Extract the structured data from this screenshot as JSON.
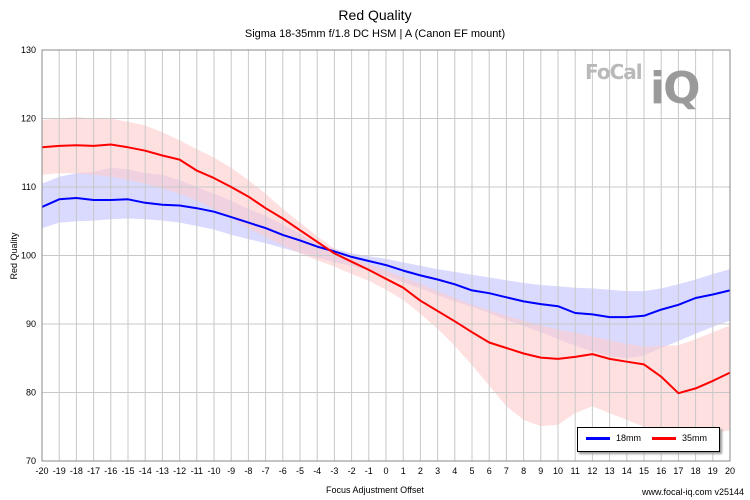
{
  "chart_data": {
    "type": "line",
    "title": "Red Quality",
    "subtitle": "Sigma 18-35mm f/1.8 DC HSM | A (Canon EF mount)",
    "xlabel": "Focus Adjustment Offset",
    "ylabel": "Red Quality",
    "xlim": [
      -20,
      20
    ],
    "ylim": [
      70,
      130
    ],
    "yticks": [
      70,
      80,
      90,
      100,
      110,
      120,
      130
    ],
    "x": [
      -20,
      -19,
      -18,
      -17,
      -16,
      -15,
      -14,
      -13,
      -12,
      -11,
      -10,
      -9,
      -8,
      -7,
      -6,
      -5,
      -4,
      -3,
      -2,
      -1,
      0,
      1,
      2,
      3,
      4,
      5,
      6,
      7,
      8,
      9,
      10,
      11,
      12,
      13,
      14,
      15,
      16,
      17,
      18,
      19,
      20
    ],
    "grid": true,
    "legend_position": "bottom-right",
    "series": [
      {
        "name": "18mm",
        "color": "#0000ff",
        "band_color": "#bcbcff",
        "values": [
          107.1,
          108.2,
          108.4,
          108.1,
          108.1,
          108.2,
          107.7,
          107.4,
          107.3,
          106.9,
          106.4,
          105.6,
          104.8,
          104.0,
          103.0,
          102.2,
          101.3,
          100.6,
          99.8,
          99.2,
          98.6,
          97.8,
          97.1,
          96.5,
          95.8,
          94.9,
          94.5,
          93.9,
          93.3,
          92.9,
          92.6,
          91.6,
          91.4,
          91.0,
          91.0,
          91.2,
          92.1,
          92.8,
          93.8,
          94.3,
          94.9
        ],
        "upper": [
          110.5,
          111.5,
          112.0,
          112.2,
          112.8,
          112.6,
          112.0,
          111.8,
          111.0,
          110.0,
          109.0,
          108.0,
          106.8,
          105.8,
          104.5,
          103.2,
          101.8,
          101.0,
          100.3,
          99.9,
          99.5,
          99.0,
          98.5,
          98.0,
          97.6,
          97.2,
          96.8,
          96.4,
          96.0,
          95.7,
          95.5,
          95.3,
          95.2,
          95.0,
          94.8,
          94.8,
          95.2,
          95.8,
          96.5,
          97.3,
          98.0
        ],
        "lower": [
          104.0,
          104.8,
          105.0,
          105.1,
          105.3,
          105.4,
          105.3,
          105.1,
          104.8,
          104.3,
          103.8,
          103.0,
          102.4,
          101.8,
          101.1,
          100.4,
          99.7,
          99.0,
          98.5,
          97.8,
          97.0,
          96.1,
          95.2,
          94.2,
          93.3,
          92.5,
          91.6,
          90.6,
          89.7,
          88.8,
          87.8,
          86.8,
          86.0,
          85.3,
          85.0,
          85.4,
          86.5,
          87.5,
          88.6,
          89.6,
          90.5
        ]
      },
      {
        "name": "35mm",
        "color": "#ff0000",
        "band_color": "#ffcccc",
        "values": [
          115.8,
          116.0,
          116.1,
          116.0,
          116.2,
          115.8,
          115.3,
          114.6,
          114.0,
          112.4,
          111.3,
          110.0,
          108.6,
          106.9,
          105.4,
          103.7,
          102.0,
          100.3,
          99.1,
          97.9,
          96.6,
          95.3,
          93.4,
          91.9,
          90.4,
          88.8,
          87.3,
          86.5,
          85.7,
          85.1,
          84.9,
          85.2,
          85.6,
          84.9,
          84.5,
          84.1,
          82.3,
          79.9,
          80.6,
          81.7,
          82.9
        ],
        "upper": [
          119.8,
          120.0,
          120.2,
          120.0,
          120.0,
          119.5,
          119.0,
          118.0,
          116.8,
          115.5,
          114.3,
          112.8,
          111.0,
          109.0,
          106.8,
          104.8,
          102.8,
          101.0,
          99.8,
          98.7,
          97.8,
          96.8,
          95.9,
          94.8,
          93.8,
          92.8,
          92.0,
          91.2,
          90.5,
          89.8,
          89.2,
          88.7,
          88.2,
          87.6,
          87.1,
          86.7,
          86.8,
          86.9,
          87.8,
          88.8,
          89.8
        ],
        "lower": [
          111.8,
          112.0,
          112.0,
          111.8,
          111.5,
          111.0,
          110.5,
          109.8,
          109.0,
          108.0,
          106.8,
          105.5,
          104.0,
          102.7,
          101.5,
          100.3,
          99.3,
          98.4,
          97.3,
          96.3,
          95.0,
          93.5,
          91.5,
          89.3,
          86.8,
          84.0,
          81.0,
          78.0,
          76.0,
          75.1,
          75.3,
          77.0,
          78.0,
          77.0,
          76.0,
          75.0,
          74.0,
          73.0,
          73.5,
          74.0,
          74.5
        ]
      }
    ]
  },
  "logo": {
    "word1": "FoCal",
    "word2": "iQ"
  },
  "footer": "www.focal-iq.com  v25144"
}
